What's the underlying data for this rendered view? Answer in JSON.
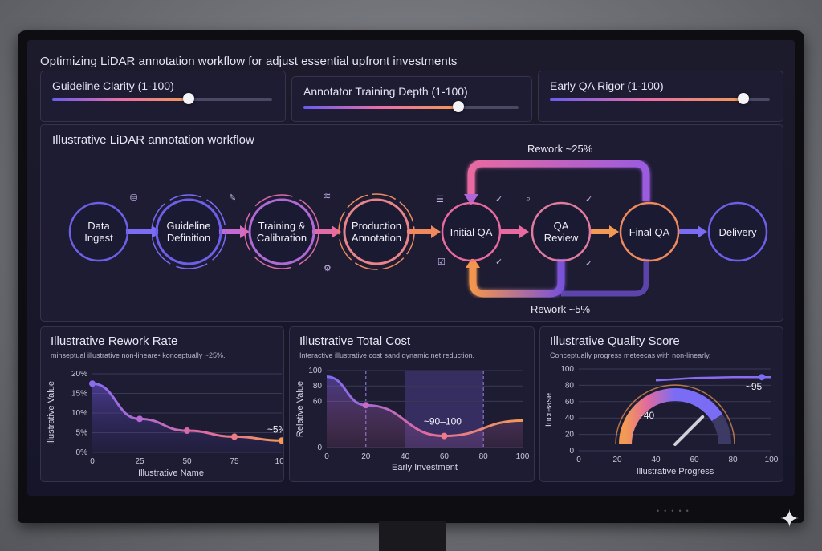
{
  "page_title": "Optimizing LiDAR annotation workflow for adjust essential upfront investments",
  "sliders": [
    {
      "label": "Guideline Clarity (1-100)",
      "value": 62
    },
    {
      "label": "Annotator Training Depth (1-100)",
      "value": 72
    },
    {
      "label": "Early QA Rigor (1-100)",
      "value": 88
    }
  ],
  "workflow": {
    "title": "Illustrative LiDAR annotation workflow",
    "nodes": [
      {
        "label": "Data\nIngest"
      },
      {
        "label": "Guideline\nDefinition"
      },
      {
        "label": "Training &\nCalibration"
      },
      {
        "label": "Production\nAnnotation"
      },
      {
        "label": "Initial QA"
      },
      {
        "label": "QA\nReview"
      },
      {
        "label": "Final QA"
      },
      {
        "label": "Delivery"
      }
    ],
    "rework_top": "Rework ~25%",
    "rework_bottom": "Rework ~5%"
  },
  "charts": {
    "rework": {
      "title": "Illustrative Rework Rate",
      "subtitle": "minseptual illustrative non-lineare• konceptually ~25%.",
      "ylabel": "Illustrative Value",
      "xlabel": "Illustrative Name",
      "annotation": "~5%",
      "yticks": [
        "0%",
        "5%",
        "10%",
        "15%",
        "20%"
      ],
      "xticks": [
        "0",
        "25",
        "50",
        "75",
        "100"
      ]
    },
    "cost": {
      "title": "Illustrative Total Cost",
      "subtitle": "Interactive illustrative cost sand dynamic net reduction.",
      "ylabel": "Relative Value",
      "xlabel": "Early Investment",
      "annotation": "~90–100",
      "yticks": [
        "0",
        "60",
        "80",
        "100"
      ],
      "xticks": [
        "0",
        "20",
        "40",
        "60",
        "80",
        "100"
      ]
    },
    "quality": {
      "title": "Illustrative Quality Score",
      "subtitle": "Conceptually progress meteecas with non-linearly.",
      "ylabel": "Increase",
      "xlabel": "Illustrative Progress",
      "gauge_label": "~40",
      "line_label": "~95",
      "yticks": [
        "0",
        "20",
        "40",
        "60",
        "80",
        "100"
      ],
      "xticks": [
        "0",
        "20",
        "40",
        "60",
        "80",
        "100"
      ]
    }
  },
  "chart_data": [
    {
      "type": "line",
      "title": "Illustrative Rework Rate",
      "xlabel": "Illustrative Name",
      "ylabel": "Illustrative Value",
      "x": [
        0,
        25,
        50,
        75,
        100
      ],
      "series": [
        {
          "values": [
            17.5,
            8.5,
            5.5,
            4,
            3
          ]
        }
      ],
      "xlim": [
        0,
        100
      ],
      "ylim": [
        0,
        20
      ]
    },
    {
      "type": "line",
      "title": "Illustrative Total Cost",
      "xlabel": "Early Investment",
      "ylabel": "Relative Value",
      "x": [
        0,
        20,
        60,
        100
      ],
      "series": [
        {
          "values": [
            92,
            55,
            15,
            35
          ]
        }
      ],
      "highlight_x": [
        40,
        80
      ],
      "xlim": [
        0,
        100
      ],
      "ylim": [
        0,
        100
      ]
    },
    {
      "type": "line",
      "title": "Illustrative Quality Score",
      "xlabel": "Illustrative Progress",
      "ylabel": "Increase",
      "x": [
        40,
        60,
        80,
        95,
        100
      ],
      "series": [
        {
          "values": [
            86,
            89,
            90,
            90,
            90
          ]
        }
      ],
      "gauge_value": 40,
      "xlim": [
        0,
        100
      ],
      "ylim": [
        0,
        100
      ]
    }
  ]
}
